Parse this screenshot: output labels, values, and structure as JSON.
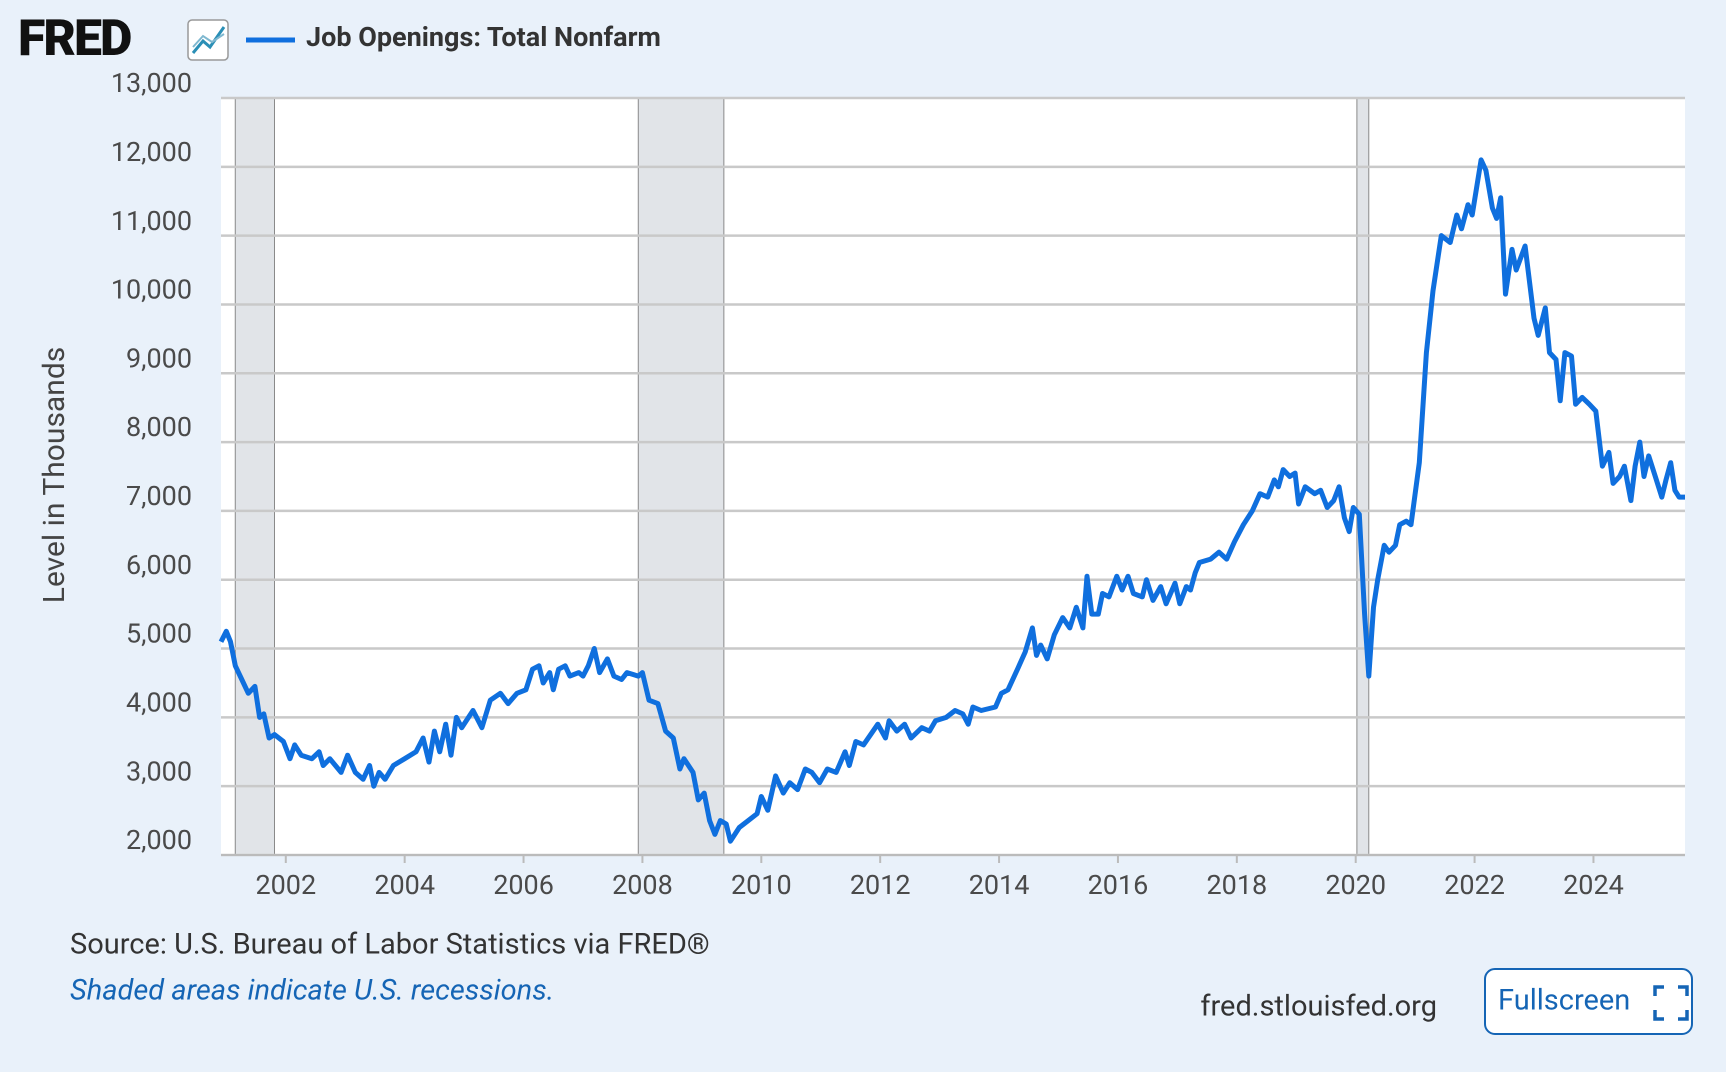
{
  "header": {
    "logo": "FRED"
  },
  "chart_data": {
    "type": "line",
    "y_label": "Level in Thousands",
    "xlim": [
      2000.91,
      2025.54
    ],
    "xticks": [
      2002,
      2004,
      2006,
      2008,
      2010,
      2012,
      2014,
      2016,
      2018,
      2020,
      2022,
      2024
    ],
    "ylim": [
      2000,
      13000
    ],
    "yticks": [
      {
        "value": 2000,
        "label": "2,000"
      },
      {
        "value": 3000,
        "label": "3,000"
      },
      {
        "value": 4000,
        "label": "4,000"
      },
      {
        "value": 5000,
        "label": "5,000"
      },
      {
        "value": 6000,
        "label": "6,000"
      },
      {
        "value": 7000,
        "label": "7,000"
      },
      {
        "value": 8000,
        "label": "8,000"
      },
      {
        "value": 9000,
        "label": "9,000"
      },
      {
        "value": 10000,
        "label": "10,000"
      },
      {
        "value": 11000,
        "label": "11,000"
      },
      {
        "value": 12000,
        "label": "12,000"
      },
      {
        "value": 13000,
        "label": "13,000"
      }
    ],
    "grid": true,
    "recessions": [
      [
        2001.15,
        2001.81
      ],
      [
        2007.93,
        2009.37
      ],
      [
        2020.02,
        2020.22
      ]
    ],
    "recession_color": "#e1e4e8",
    "series": [
      {
        "name": "Job Openings: Total Nonfarm",
        "color": "#0f6fde",
        "x": [
          2000.91,
          2001.0,
          2001.07,
          2001.15,
          2001.26,
          2001.37,
          2001.48,
          2001.56,
          2001.63,
          2001.72,
          2001.81,
          2001.96,
          2002.07,
          2002.15,
          2002.26,
          2002.44,
          2002.56,
          2002.63,
          2002.74,
          2002.93,
          2003.04,
          2003.17,
          2003.3,
          2003.41,
          2003.48,
          2003.57,
          2003.67,
          2003.81,
          2004.0,
          2004.19,
          2004.31,
          2004.41,
          2004.5,
          2004.59,
          2004.69,
          2004.78,
          2004.87,
          2004.96,
          2005.15,
          2005.3,
          2005.44,
          2005.61,
          2005.74,
          2005.89,
          2006.04,
          2006.15,
          2006.26,
          2006.33,
          2006.44,
          2006.5,
          2006.59,
          2006.7,
          2006.78,
          2006.93,
          2007.0,
          2007.09,
          2007.19,
          2007.28,
          2007.41,
          2007.52,
          2007.65,
          2007.74,
          2007.93,
          2008.0,
          2008.11,
          2008.26,
          2008.39,
          2008.52,
          2008.63,
          2008.7,
          2008.85,
          2008.94,
          2009.04,
          2009.13,
          2009.22,
          2009.31,
          2009.41,
          2009.48,
          2009.63,
          2009.78,
          2009.93,
          2010.0,
          2010.11,
          2010.24,
          2010.37,
          2010.48,
          2010.61,
          2010.74,
          2010.85,
          2010.98,
          2011.11,
          2011.26,
          2011.41,
          2011.48,
          2011.59,
          2011.72,
          2011.96,
          2012.09,
          2012.15,
          2012.28,
          2012.41,
          2012.52,
          2012.7,
          2012.83,
          2012.93,
          2013.11,
          2013.26,
          2013.39,
          2013.48,
          2013.56,
          2013.7,
          2013.94,
          2014.04,
          2014.15,
          2014.31,
          2014.44,
          2014.56,
          2014.63,
          2014.7,
          2014.81,
          2014.93,
          2015.07,
          2015.19,
          2015.3,
          2015.41,
          2015.48,
          2015.56,
          2015.67,
          2015.74,
          2015.85,
          2015.98,
          2016.07,
          2016.17,
          2016.26,
          2016.41,
          2016.48,
          2016.59,
          2016.72,
          2016.81,
          2016.96,
          2017.04,
          2017.15,
          2017.22,
          2017.3,
          2017.37,
          2017.56,
          2017.7,
          2017.83,
          2017.96,
          2018.11,
          2018.26,
          2018.39,
          2018.52,
          2018.63,
          2018.7,
          2018.78,
          2018.89,
          2018.98,
          2019.04,
          2019.15,
          2019.31,
          2019.41,
          2019.52,
          2019.63,
          2019.72,
          2019.81,
          2019.89,
          2019.96,
          2020.06,
          2020.15,
          2020.22,
          2020.3,
          2020.37,
          2020.48,
          2020.56,
          2020.67,
          2020.74,
          2020.85,
          2020.93,
          2021.07,
          2021.19,
          2021.3,
          2021.44,
          2021.59,
          2021.7,
          2021.78,
          2021.89,
          2021.96,
          2022.11,
          2022.19,
          2022.3,
          2022.37,
          2022.44,
          2022.52,
          2022.63,
          2022.7,
          2022.85,
          2023.0,
          2023.07,
          2023.19,
          2023.26,
          2023.37,
          2023.44,
          2023.52,
          2023.63,
          2023.7,
          2023.81,
          2023.93,
          2024.04,
          2024.15,
          2024.26,
          2024.33,
          2024.44,
          2024.52,
          2024.63,
          2024.7,
          2024.78,
          2024.85,
          2024.93,
          2025.04,
          2025.15,
          2025.22,
          2025.3,
          2025.37,
          2025.44,
          2025.54
        ],
        "values": [
          5100,
          5250,
          5100,
          4750,
          4550,
          4350,
          4450,
          4000,
          4050,
          3700,
          3750,
          3650,
          3400,
          3600,
          3450,
          3400,
          3500,
          3300,
          3400,
          3200,
          3450,
          3200,
          3100,
          3300,
          3000,
          3200,
          3100,
          3300,
          3400,
          3500,
          3700,
          3350,
          3800,
          3500,
          3900,
          3450,
          4000,
          3850,
          4100,
          3850,
          4250,
          4350,
          4200,
          4350,
          4400,
          4700,
          4750,
          4500,
          4650,
          4400,
          4700,
          4750,
          4600,
          4650,
          4600,
          4750,
          5000,
          4650,
          4850,
          4600,
          4550,
          4650,
          4600,
          4650,
          4250,
          4200,
          3800,
          3700,
          3250,
          3400,
          3200,
          2800,
          2900,
          2500,
          2300,
          2500,
          2450,
          2200,
          2400,
          2500,
          2600,
          2850,
          2650,
          3150,
          2900,
          3050,
          2950,
          3250,
          3200,
          3050,
          3250,
          3200,
          3500,
          3300,
          3650,
          3600,
          3900,
          3700,
          3950,
          3800,
          3900,
          3700,
          3850,
          3800,
          3950,
          4000,
          4100,
          4050,
          3900,
          4150,
          4100,
          4150,
          4350,
          4400,
          4700,
          4950,
          5300,
          4900,
          5050,
          4850,
          5200,
          5450,
          5300,
          5600,
          5300,
          6050,
          5500,
          5500,
          5800,
          5750,
          6050,
          5850,
          6050,
          5800,
          5750,
          6000,
          5700,
          5900,
          5650,
          5950,
          5650,
          5900,
          5850,
          6100,
          6250,
          6300,
          6400,
          6300,
          6550,
          6800,
          7000,
          7250,
          7200,
          7450,
          7350,
          7600,
          7500,
          7550,
          7100,
          7350,
          7250,
          7300,
          7050,
          7150,
          7350,
          6900,
          6700,
          7050,
          6950,
          5500,
          4600,
          5600,
          6000,
          6500,
          6400,
          6500,
          6800,
          6850,
          6800,
          7700,
          9300,
          10200,
          11000,
          10900,
          11300,
          11100,
          11450,
          11300,
          12100,
          11950,
          11400,
          11250,
          11550,
          10150,
          10800,
          10500,
          10850,
          9800,
          9550,
          9950,
          9300,
          9200,
          8600,
          9300,
          9250,
          8550,
          8650,
          8550,
          8450,
          7650,
          7850,
          7400,
          7500,
          7650,
          7150,
          7650,
          8000,
          7500,
          7800,
          7500,
          7200,
          7450,
          7700,
          7300,
          7200,
          7200
        ]
      }
    ]
  },
  "footer": {
    "source": "Source: U.S. Bureau of Labor Statistics via FRED®",
    "note": "Shaded areas indicate U.S. recessions.",
    "site": "fred.stlouisfed.org",
    "button": "Fullscreen"
  }
}
